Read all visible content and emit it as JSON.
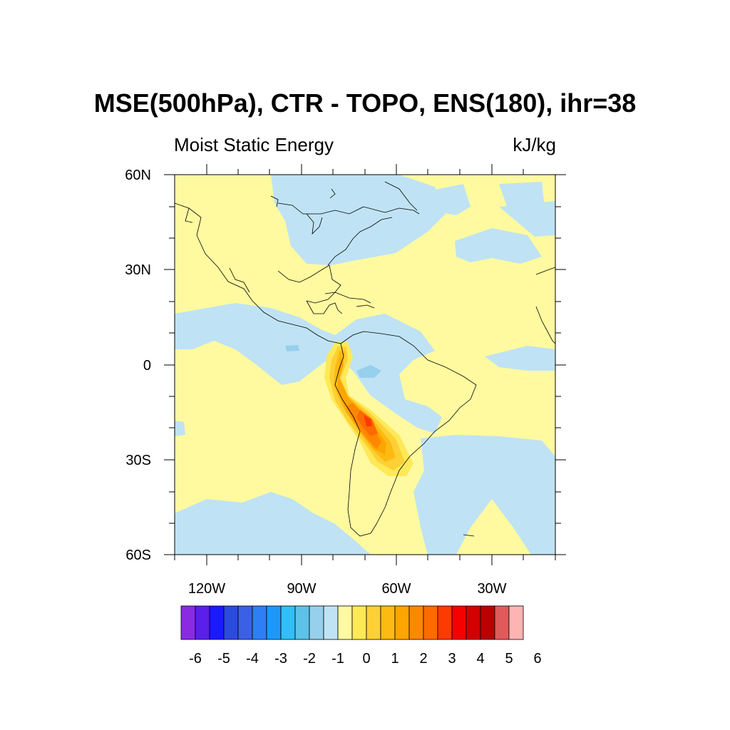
{
  "title": "MSE(500hPa), CTR - TOPO, ENS(180), ihr=38",
  "left_string": "Moist Static Energy",
  "right_string": "kJ/kg",
  "lat_labels": [
    "60N",
    "30N",
    "0",
    "30S",
    "60S"
  ],
  "lon_labels": [
    "120W",
    "90W",
    "60W",
    "30W"
  ],
  "colorbar": {
    "colors": [
      "#8a2be2",
      "#5a1fe8",
      "#1a1aff",
      "#2a4ae0",
      "#3a60e6",
      "#2e7ef5",
      "#1e98f8",
      "#31bff8",
      "#5cc2ea",
      "#96d0ec",
      "#bfe3f4",
      "#fffaa0",
      "#ffe957",
      "#fdd035",
      "#fdbb12",
      "#fda500",
      "#fd8800",
      "#fd6a00",
      "#fd3a00",
      "#f80000",
      "#d40000",
      "#bc0000",
      "#e05a5a",
      "#ffb4b4"
    ],
    "labels": [
      "-6",
      "-5",
      "-4",
      "-3",
      "-2",
      "-1",
      "0",
      "1",
      "2",
      "3",
      "4",
      "5",
      "6"
    ]
  },
  "legend_colors": {
    "positive_small": "#fffaa0",
    "negative_small": "#bfe3f4",
    "ocean": "#bfe3f4",
    "max": "#fd3a00"
  }
}
